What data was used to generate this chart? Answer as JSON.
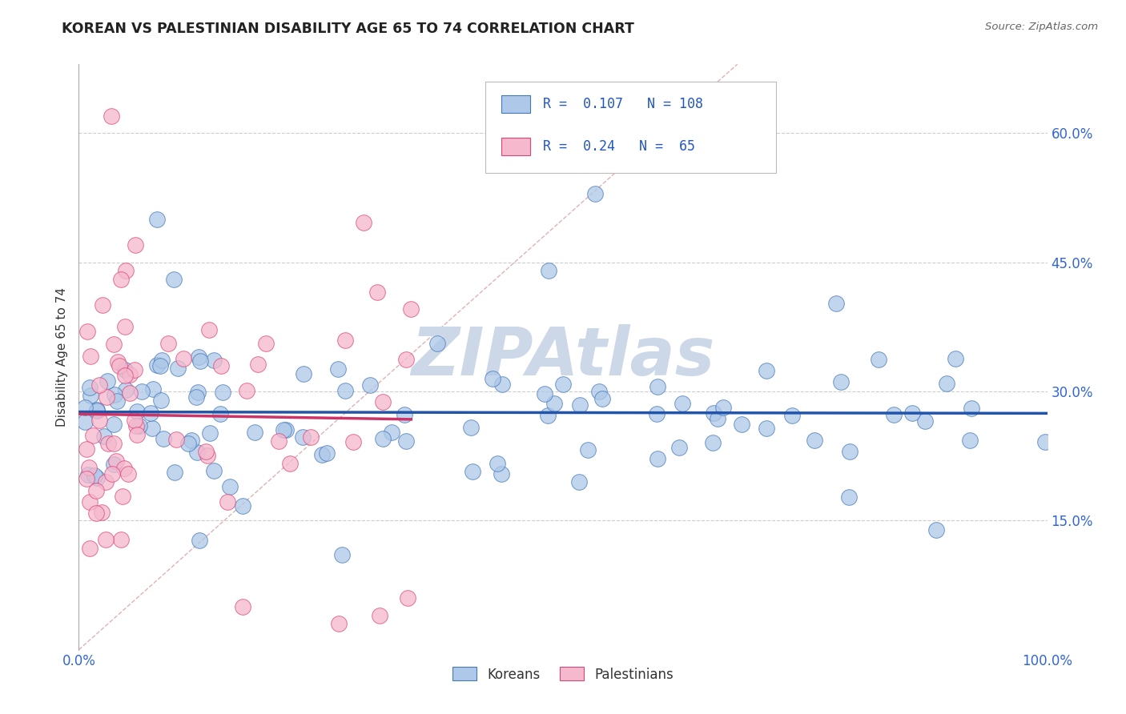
{
  "title": "KOREAN VS PALESTINIAN DISABILITY AGE 65 TO 74 CORRELATION CHART",
  "source_text": "Source: ZipAtlas.com",
  "ylabel": "Disability Age 65 to 74",
  "xlim": [
    0.0,
    1.0
  ],
  "ylim": [
    0.0,
    0.68
  ],
  "xticklabels": [
    "0.0%",
    "100.0%"
  ],
  "yticklabels": [
    "15.0%",
    "30.0%",
    "45.0%",
    "60.0%"
  ],
  "ytick_positions": [
    0.15,
    0.3,
    0.45,
    0.6
  ],
  "korean_R": 0.107,
  "korean_N": 108,
  "palestinian_R": 0.24,
  "palestinian_N": 65,
  "korean_color": "#adc8e8",
  "korean_edge_color": "#4477bb",
  "palestinian_color": "#f5b8cc",
  "palestinian_edge_color": "#dd4477",
  "korean_line_color": "#2255aa",
  "palestinian_line_color": "#cc3366",
  "diagonal_color": "#ddaaaa",
  "legend_color": "#2255cc",
  "watermark_color": "#ccd8e8",
  "background_color": "#ffffff",
  "grid_color": "#cccccc",
  "title_color": "#222222",
  "right_yaxis_color": "#3366cc",
  "tick_color": "#3366cc",
  "figsize": [
    14.06,
    8.92
  ],
  "dpi": 100
}
